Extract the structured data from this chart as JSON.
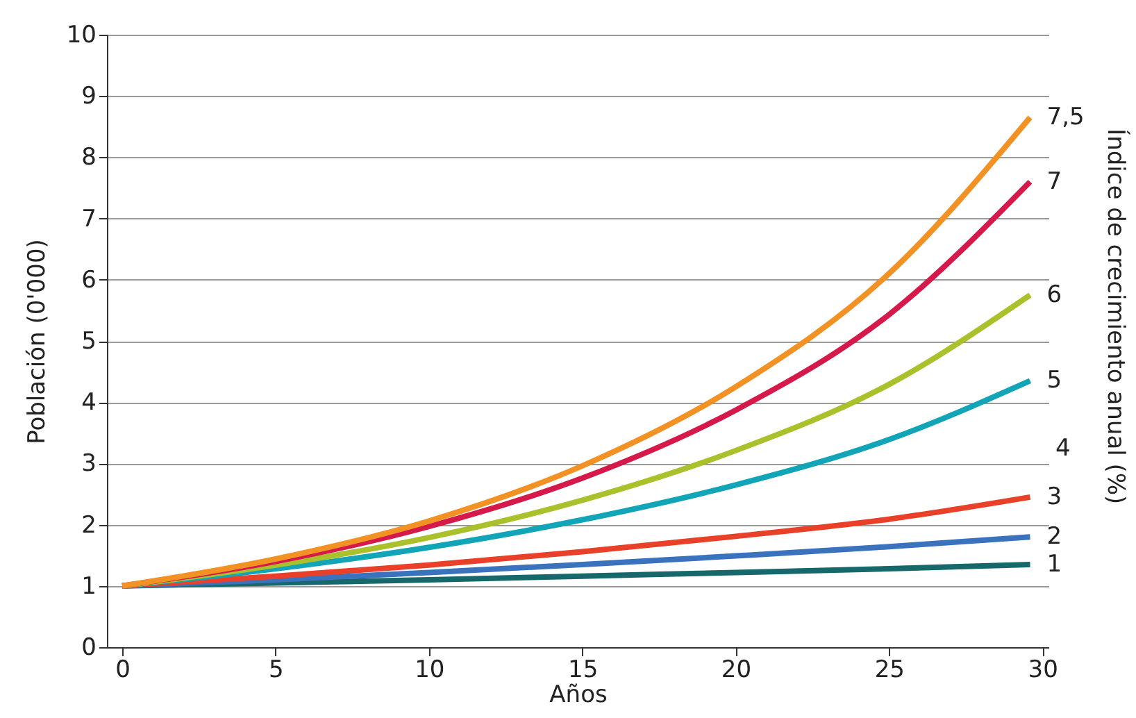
{
  "chart_data": {
    "type": "line",
    "xlabel": "Años",
    "ylabel": "Población (0'000)",
    "legend_title": "Índice de crecimiento anual (%)",
    "x": [
      0,
      5,
      10,
      15,
      20,
      25,
      29.6
    ],
    "series": [
      {
        "name": "1",
        "color": "#17686a",
        "values": [
          1,
          1.05,
          1.1,
          1.16,
          1.22,
          1.28,
          1.35
        ]
      },
      {
        "name": "2",
        "color": "#3b72bd",
        "values": [
          1,
          1.1,
          1.22,
          1.35,
          1.49,
          1.64,
          1.8
        ]
      },
      {
        "name": "3",
        "color": "#e9402a",
        "values": [
          1,
          1.16,
          1.34,
          1.56,
          1.81,
          2.09,
          2.45
        ]
      },
      {
        "name": "5",
        "color": "#12a5b7",
        "values": [
          1,
          1.28,
          1.63,
          2.08,
          2.65,
          3.39,
          4.35
        ]
      },
      {
        "name": "6",
        "color": "#abc12b",
        "values": [
          1,
          1.34,
          1.79,
          2.4,
          3.21,
          4.29,
          5.75
        ]
      },
      {
        "name": "7",
        "color": "#d6194b",
        "values": [
          1,
          1.4,
          1.97,
          2.76,
          3.87,
          5.43,
          7.6
        ]
      },
      {
        "name": "7,5",
        "color": "#f39224",
        "values": [
          1,
          1.44,
          2.06,
          2.96,
          4.25,
          6.1,
          8.65
        ]
      }
    ],
    "annotations": [
      "4"
    ],
    "xlim": [
      -0.5,
      30.2
    ],
    "xticks": [
      0,
      5,
      10,
      15,
      20,
      25,
      30
    ],
    "ylim": [
      0,
      10
    ],
    "yticks": [
      0,
      1,
      2,
      3,
      4,
      5,
      6,
      7,
      8,
      9,
      10
    ],
    "grid": "y",
    "marker": "none",
    "line_style": "solid"
  }
}
